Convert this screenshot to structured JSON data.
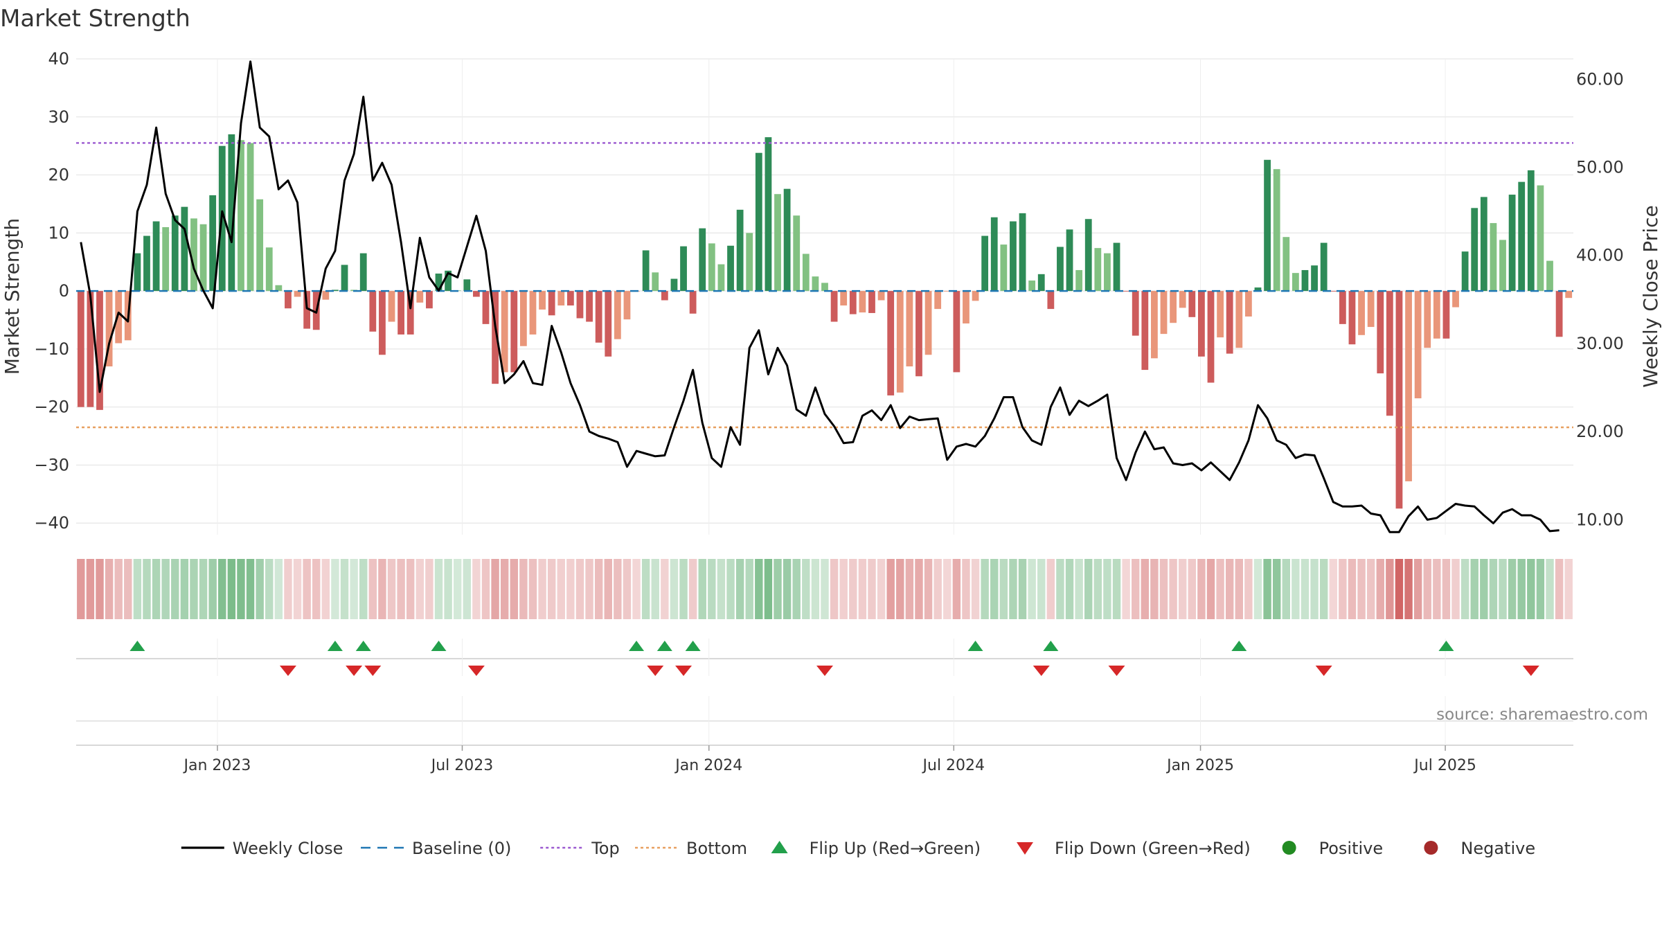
{
  "chart_data": {
    "type": "bar",
    "title": "Market Strength",
    "ylabel": "Market Strength",
    "y2label": "Weekly Close Price",
    "ylim": [
      -42,
      40
    ],
    "y2lim": [
      8.3,
      62.3
    ],
    "yticks": [
      "40",
      "30",
      "20",
      "10",
      "0",
      "−10",
      "−20",
      "−30",
      "−40"
    ],
    "yticks_values": [
      40,
      30,
      20,
      10,
      0,
      -10,
      -20,
      -30,
      -40
    ],
    "y2ticks": [
      "60.00",
      "50.00",
      "40.00",
      "30.00",
      "20.00",
      "10.00"
    ],
    "y2ticks_values": [
      60,
      50,
      40,
      30,
      20,
      10
    ],
    "top_level": 25.5,
    "bottom_level": -23.5,
    "xlabels": [
      "Jan 2023",
      "Jul 2023",
      "Jan 2024",
      "Jul 2024",
      "Jan 2025",
      "Jul 2025"
    ],
    "xlabel_weeks": [
      14.5,
      40.5,
      66.7,
      92.7,
      118.9,
      144.9
    ],
    "strength": [
      -20,
      -20,
      -20.5,
      -13,
      -9,
      -8.5,
      6.5,
      9.5,
      12,
      11,
      13,
      14.5,
      12.5,
      11.5,
      16.5,
      25,
      27,
      26,
      25.5,
      15.8,
      7.5,
      1,
      -3,
      -1,
      -6.5,
      -6.7,
      -1.5,
      0.2,
      4.5,
      0.2,
      6.5,
      -7,
      -11,
      -5.3,
      -7.5,
      -7.5,
      -2,
      -3,
      3,
      3.5,
      0.1,
      2,
      -1,
      -5.7,
      -16,
      -14,
      -14,
      -9.5,
      -7.5,
      -3.2,
      -4.2,
      -2.5,
      -2.5,
      -4.7,
      -5.3,
      -8.9,
      -11.3,
      -8.3,
      -4.9,
      -0.1,
      7,
      3.2,
      -1.6,
      2.1,
      7.7,
      -3.9,
      10.8,
      8.2,
      4.6,
      7.8,
      14,
      10,
      23.8,
      26.5,
      16.7,
      17.6,
      13,
      6.4,
      2.5,
      1.4,
      -5.3,
      -2.5,
      -4,
      -3.7,
      -3.8,
      -1.6,
      -18,
      -17.5,
      -13,
      -14.7,
      -11,
      -3.1,
      -0.1,
      -14,
      -5.6,
      -1.7,
      9.5,
      12.7,
      8,
      12,
      13.4,
      1.8,
      2.9,
      -3.1,
      7.6,
      10.6,
      3.6,
      12.4,
      7.4,
      6.5,
      8.3,
      -0.1,
      -7.7,
      -13.6,
      -11.6,
      -7.4,
      -5.5,
      -2.9,
      -4.5,
      -11.3,
      -15.8,
      -8,
      -10.8,
      -9.8,
      -4.4,
      0.6,
      22.6,
      21,
      9.3,
      3.1,
      3.6,
      4.4,
      8.3,
      -0.1,
      -5.7,
      -9.2,
      -7.6,
      -6.2,
      -14.2,
      -21.5,
      -37.5,
      -32.8,
      -18.5,
      -9.8,
      -8.2,
      -8.2,
      -2.8,
      6.8,
      14.3,
      16.2,
      11.7,
      8.8,
      16.6,
      18.8,
      20.8,
      18.2,
      5.2,
      -7.9,
      -1.2
    ],
    "weekly_close": [
      41.5,
      35.5,
      24.5,
      30,
      33.5,
      32.5,
      45,
      48,
      54.5,
      47,
      44,
      43,
      38.5,
      36,
      34,
      45,
      41.5,
      55,
      62,
      54.5,
      53.5,
      47.5,
      48.5,
      46,
      34,
      33.5,
      38.5,
      40.5,
      48.5,
      51.5,
      58,
      48.5,
      50.5,
      48,
      41.5,
      34,
      42,
      37.5,
      36,
      38,
      37.5,
      41,
      44.5,
      40.5,
      32,
      25.5,
      26.5,
      28,
      25.5,
      25.3,
      32,
      29,
      25.5,
      23,
      20,
      19.5,
      19.2,
      18.8,
      16,
      17.8,
      17.5,
      17.2,
      17.3,
      20.5,
      23.5,
      27,
      21,
      17,
      16,
      20.5,
      18.5,
      29.5,
      31.5,
      26.5,
      29.5,
      27.5,
      22.5,
      21.8,
      25,
      22,
      20.6,
      18.7,
      18.8,
      21.8,
      22.4,
      21.3,
      23,
      20.4,
      21.7,
      21.3,
      21.4,
      21.5,
      16.8,
      18.3,
      18.6,
      18.3,
      19.5,
      21.5,
      23.9,
      23.9,
      20.5,
      19,
      18.5,
      22.8,
      25,
      21.9,
      23.5,
      22.9,
      23.5,
      24.2,
      17,
      14.5,
      17.6,
      20,
      18,
      18.2,
      16.4,
      16.2,
      16.4,
      15.6,
      16.5,
      15.5,
      14.5,
      16.5,
      19,
      23,
      21.5,
      19,
      18.5,
      17,
      17.4,
      17.3,
      14.7,
      12,
      11.5,
      11.5,
      11.6,
      10.7,
      10.5,
      8.6,
      8.6,
      10.4,
      11.5,
      10,
      10.2,
      11,
      11.8,
      11.6,
      11.5,
      10.5,
      9.6,
      10.8,
      11.2,
      10.5,
      10.5,
      10,
      8.7,
      8.8
    ],
    "flip_up_weeks": [
      6,
      27,
      30,
      38,
      59,
      62,
      65,
      95,
      103,
      123,
      145
    ],
    "flip_down_weeks": [
      22,
      29,
      31,
      42,
      61,
      64,
      79,
      102,
      110,
      132,
      154
    ],
    "source": "source: sharemaestro.com",
    "legend": [
      {
        "label": "Weekly Close",
        "marker": "line",
        "color": "#000000"
      },
      {
        "label": "Baseline (0)",
        "marker": "dash",
        "color": "#1f77b4"
      },
      {
        "label": "Top",
        "marker": "dotted",
        "color": "#9b59d0"
      },
      {
        "label": "Bottom",
        "marker": "dotted",
        "color": "#e8a060"
      },
      {
        "label": "Flip Up (Red→Green)",
        "marker": "triangle-up",
        "color": "#22a04b"
      },
      {
        "label": "Flip Down (Green→Red)",
        "marker": "triangle-down",
        "color": "#d62728"
      },
      {
        "label": "Positive",
        "marker": "circle",
        "color": "#228b22"
      },
      {
        "label": "Negative",
        "marker": "circle",
        "color": "#a52a2a"
      }
    ],
    "colors": {
      "pos_strong": "#2e8b57",
      "pos_light": "#82c182",
      "neg_strong": "#cd5c5c",
      "neg_light": "#e9967a",
      "price_line": "#000000",
      "baseline": "#1f77b4",
      "top": "#9b59d0",
      "bottom": "#e8a060",
      "flip_up": "#22a04b",
      "flip_down": "#d62728"
    }
  }
}
